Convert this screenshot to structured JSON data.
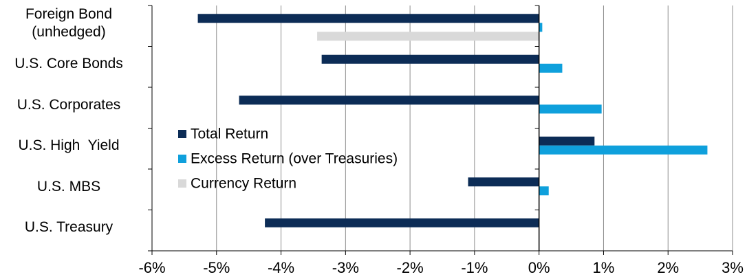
{
  "chart_data": {
    "type": "hbar",
    "categories": [
      "Foreign Bond\n(unhedged)",
      "U.S. Core Bonds",
      "U.S. Corporates",
      "U.S. High  Yield",
      "U.S. MBS",
      "U.S. Treasury"
    ],
    "series": [
      {
        "name": "Total Return",
        "color": "#0c2c56",
        "values": [
          -5.29,
          -3.37,
          -4.65,
          0.86,
          -1.1,
          -4.25
        ]
      },
      {
        "name": "Excess Return (over Treasuries)",
        "color": "#0fa0dc",
        "values": [
          0.05,
          0.36,
          0.97,
          2.61,
          0.15,
          null
        ]
      },
      {
        "name": "Currency Return",
        "color": "#d9d9d9",
        "values": [
          -3.44,
          null,
          null,
          null,
          null,
          null
        ]
      }
    ],
    "xlim": [
      -6,
      3
    ],
    "xticks": [
      {
        "value": -6,
        "label": "-6%"
      },
      {
        "value": -5,
        "label": "-5%"
      },
      {
        "value": -4,
        "label": "-4%"
      },
      {
        "value": -3,
        "label": "-3%"
      },
      {
        "value": -2,
        "label": "-2%"
      },
      {
        "value": -1,
        "label": "-1%"
      },
      {
        "value": 0,
        "label": "0%"
      },
      {
        "value": 1,
        "label": "1%"
      },
      {
        "value": 2,
        "label": "2%"
      },
      {
        "value": 3,
        "label": "3%"
      }
    ],
    "grid": true,
    "legend": "left"
  }
}
